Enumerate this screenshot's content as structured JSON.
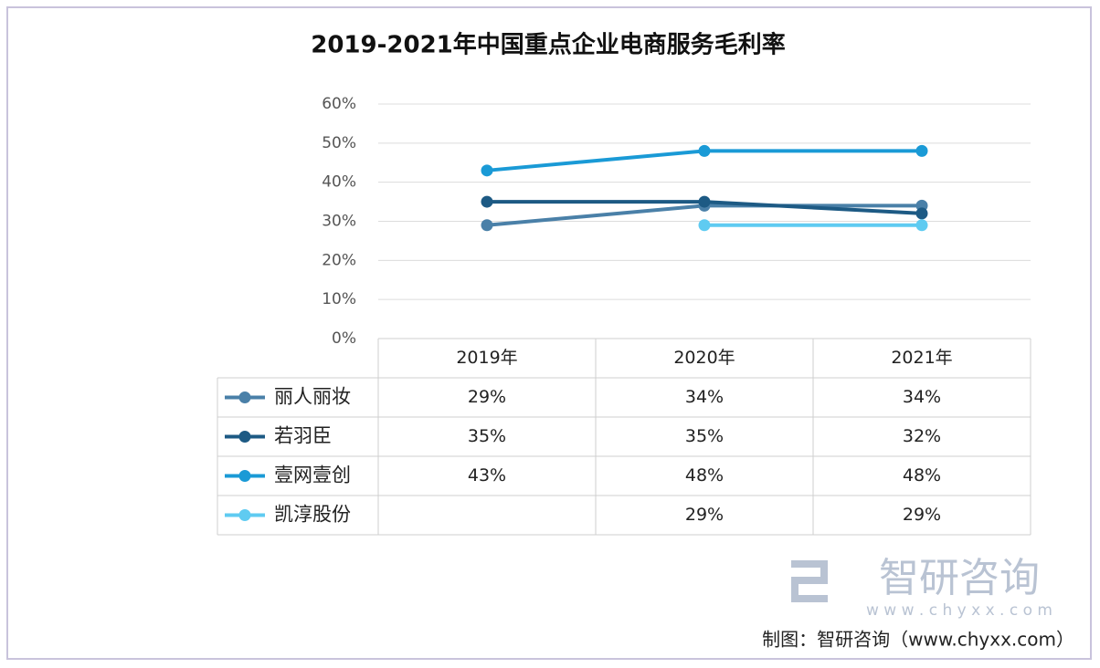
{
  "chart_data": {
    "type": "line",
    "title": "2019-2021年中国重点企业电商服务毛利率",
    "categories": [
      "2019年",
      "2020年",
      "2021年"
    ],
    "series": [
      {
        "name": "丽人丽妆",
        "color": "#4a80a8",
        "values": [
          29,
          34,
          34
        ],
        "value_labels": [
          "29%",
          "34%",
          "34%"
        ]
      },
      {
        "name": "若羽臣",
        "color": "#1d5a84",
        "values": [
          35,
          35,
          32
        ],
        "value_labels": [
          "35%",
          "35%",
          "32%"
        ]
      },
      {
        "name": "壹网壹创",
        "color": "#1a9ad6",
        "values": [
          43,
          48,
          48
        ],
        "value_labels": [
          "43%",
          "48%",
          "48%"
        ]
      },
      {
        "name": "凯淳股份",
        "color": "#5fcbf1",
        "values": [
          null,
          29,
          29
        ],
        "value_labels": [
          null,
          "29%",
          "29%"
        ]
      }
    ],
    "ylim": [
      0,
      60
    ],
    "yticks": [
      {
        "value": 0,
        "label": "0%"
      },
      {
        "value": 10,
        "label": "10%"
      },
      {
        "value": 20,
        "label": "20%"
      },
      {
        "value": 30,
        "label": "30%"
      },
      {
        "value": 40,
        "label": "40%"
      },
      {
        "value": 50,
        "label": "50%"
      },
      {
        "value": 60,
        "label": "60%"
      }
    ],
    "grid": true
  },
  "watermark": {
    "name": "智研咨询",
    "url": "w w w . c h y x x . c o m"
  },
  "source": "制图：智研咨询（www.chyxx.com）"
}
